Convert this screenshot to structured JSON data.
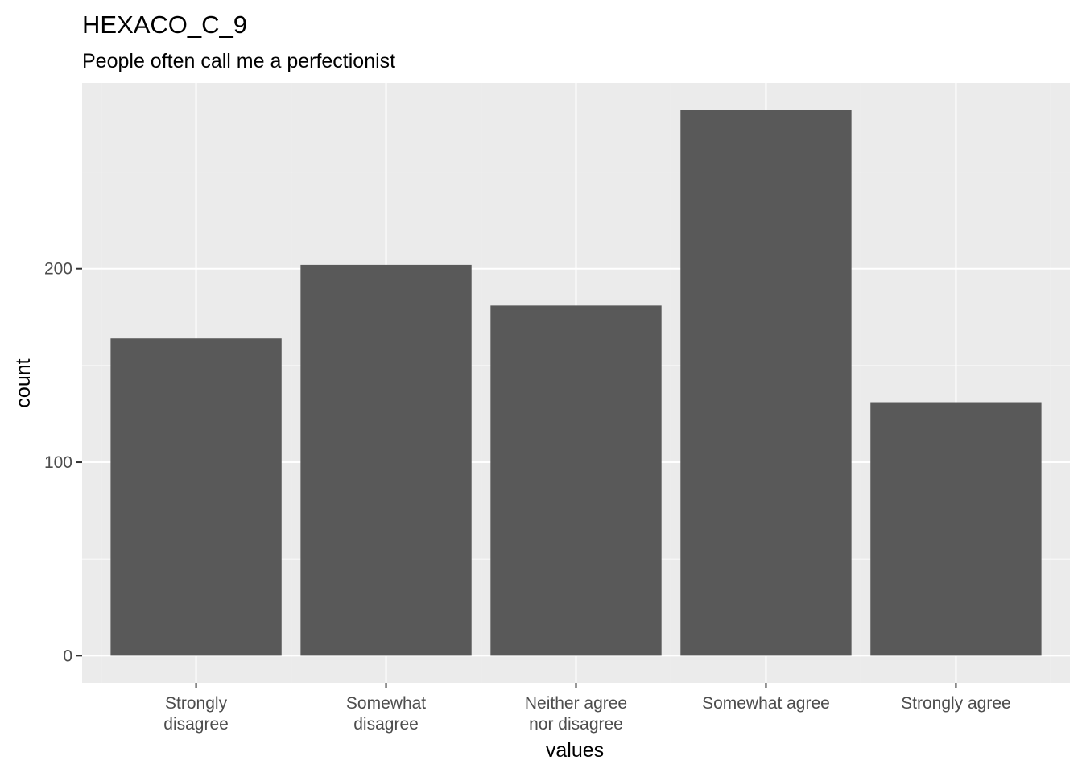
{
  "chart_data": {
    "type": "bar",
    "title": "HEXACO_C_9",
    "subtitle": "People often call me a perfectionist",
    "xlabel": "values",
    "ylabel": "count",
    "categories": [
      [
        "Strongly",
        "disagree"
      ],
      [
        "Somewhat",
        "disagree"
      ],
      [
        "Neither agree",
        "nor disagree"
      ],
      [
        "Somewhat agree"
      ],
      [
        "Strongly agree"
      ]
    ],
    "values": [
      164,
      202,
      181,
      282,
      131
    ],
    "ylim": [
      -14,
      296
    ],
    "yticks": [
      0,
      100,
      200
    ],
    "yticks_minor": [
      50,
      150,
      250
    ],
    "grid": true,
    "legend": "none",
    "colors": {
      "bar": "#595959",
      "panel": "#ebebeb",
      "grid": "#ffffff",
      "tick_text": "#4d4d4d",
      "tick_mark": "#333333"
    }
  }
}
